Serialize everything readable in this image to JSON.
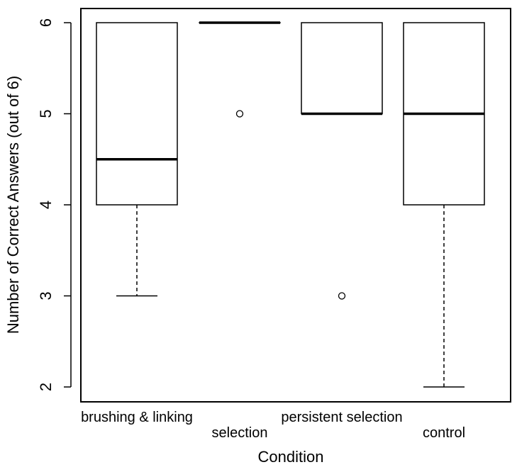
{
  "chart_data": {
    "type": "boxplot",
    "title": "",
    "xlabel": "Condition",
    "ylabel": "Number of Correct Answers (out of 6)",
    "ylim": [
      1.85,
      6.15
    ],
    "yticks": [
      2,
      3,
      4,
      5,
      6
    ],
    "grid": false,
    "legend": "none",
    "categories": [
      "brushing & linking",
      "selection",
      "persistent selection",
      "control"
    ],
    "boxes": [
      {
        "category": "brushing & linking",
        "min": 3,
        "q1": 4,
        "median": 4.5,
        "q3": 6,
        "max": 6,
        "outliers": []
      },
      {
        "category": "selection",
        "min": 6,
        "q1": 6,
        "median": 6,
        "q3": 6,
        "max": 6,
        "outliers": [
          5
        ]
      },
      {
        "category": "persistent selection",
        "min": 5,
        "q1": 5,
        "median": 5,
        "q3": 6,
        "max": 6,
        "outliers": [
          3
        ]
      },
      {
        "category": "control",
        "min": 2,
        "q1": 4,
        "median": 5,
        "q3": 6,
        "max": 6,
        "outliers": []
      }
    ]
  }
}
